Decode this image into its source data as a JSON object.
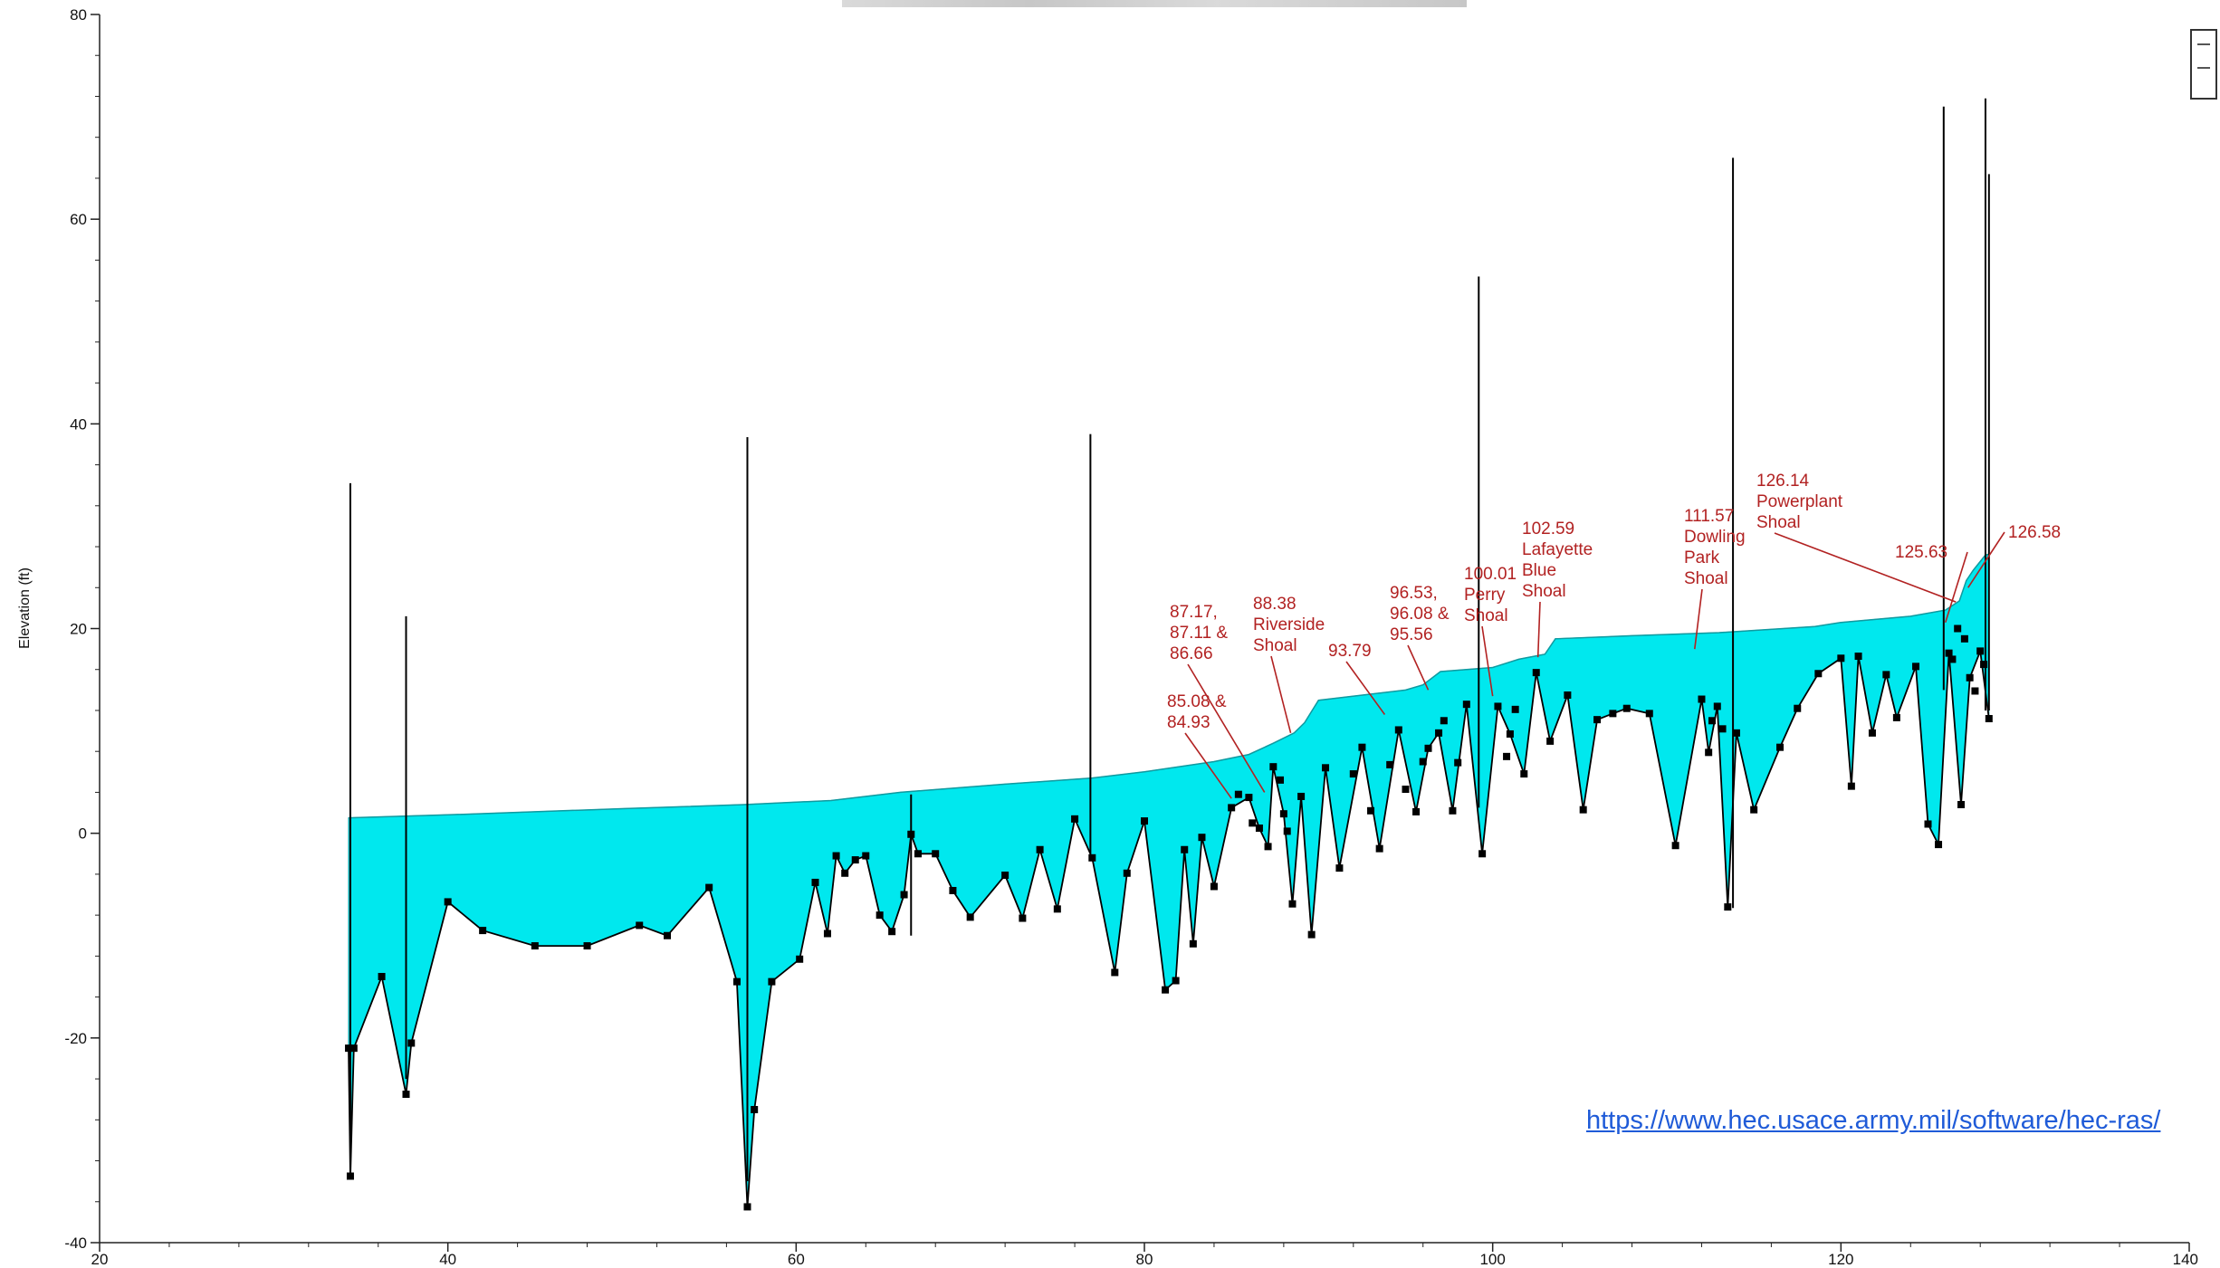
{
  "chart_data": {
    "type": "area",
    "title": "",
    "xlabel": "",
    "ylabel": "Elevation (ft)",
    "xlim": [
      20,
      140
    ],
    "ylim": [
      -40,
      80
    ],
    "x_ticks": [
      "20",
      "40",
      "60",
      "80",
      "100",
      "120",
      "140"
    ],
    "y_ticks": [
      "-40",
      "-20",
      "0",
      "20",
      "40",
      "60",
      "80"
    ],
    "grid": false,
    "legend": "top-right",
    "colors": {
      "water_fill": "#00e8ee",
      "bed_line": "#000000",
      "annotation": "#b22222",
      "link": "#1f5bd8"
    },
    "water_surface": {
      "x": [
        34.2,
        40,
        50,
        57,
        62,
        66,
        72,
        77,
        80,
        84,
        86,
        87.4,
        88.6,
        89.2,
        90,
        95,
        96,
        97,
        100,
        101.5,
        103,
        103.6,
        108,
        113,
        118.5,
        120,
        124,
        126,
        126.8,
        127.2,
        127.6,
        128.3,
        128.7
      ],
      "y": [
        1.5,
        1.8,
        2.4,
        2.8,
        3.2,
        4.0,
        4.8,
        5.4,
        6.0,
        7.0,
        7.7,
        8.8,
        9.8,
        10.8,
        13.0,
        14.0,
        14.5,
        15.8,
        16.2,
        17.0,
        17.5,
        19.0,
        19.3,
        19.6,
        20.2,
        20.6,
        21.2,
        21.8,
        22.7,
        24.7,
        25.7,
        27.2,
        27.3
      ]
    },
    "channel_bed": {
      "x": [
        34.3,
        34.4,
        34.6,
        36.2,
        37.6,
        37.9,
        40,
        42,
        45,
        48,
        51,
        52.6,
        55,
        56.6,
        57.2,
        57.6,
        58.6,
        60.2,
        61.1,
        61.8,
        62.3,
        62.8,
        63.4,
        64,
        64.8,
        65.5,
        66.2,
        66.6,
        67,
        68,
        69,
        70,
        72,
        73,
        74,
        75,
        76,
        77,
        78.3,
        79,
        80,
        81.2,
        81.8,
        82.3,
        82.8,
        83.3,
        84,
        85,
        86,
        86.6,
        87.1,
        87.4,
        88,
        88.5,
        89,
        89.6,
        90.4,
        91.2,
        92.5,
        93.5,
        94.6,
        95.6,
        96.3,
        96.9,
        97.7,
        98.5,
        99.4,
        100.3,
        101,
        101.8,
        102.5,
        103.3,
        104.3,
        105.2,
        106,
        106.9,
        107.7,
        109,
        110.5,
        112,
        112.4,
        112.9,
        113.5,
        114,
        115,
        116.5,
        117.5,
        118.7,
        120,
        120.6,
        121,
        121.8,
        122.6,
        123.2,
        124.3,
        125,
        125.6,
        126.2,
        126.9,
        127.4,
        128,
        128.5
      ],
      "y": [
        -21,
        -33.5,
        -21,
        -14,
        -25.5,
        -20.5,
        -6.7,
        -9.5,
        -11,
        -11,
        -9,
        -10,
        -5.3,
        -14.5,
        -36.5,
        -27,
        -14.5,
        -12.3,
        -4.8,
        -9.8,
        -2.2,
        -3.9,
        -2.6,
        -2.2,
        -8,
        -9.6,
        -6,
        -0.1,
        -2,
        -2,
        -5.6,
        -8.2,
        -4.1,
        -8.3,
        -1.6,
        -7.4,
        1.4,
        -2.4,
        -13.6,
        -3.9,
        1.2,
        -15.3,
        -14.4,
        -1.6,
        -10.8,
        -0.4,
        -5.2,
        2.5,
        3.5,
        0.5,
        -1.3,
        6.5,
        1.9,
        -6.9,
        3.6,
        -9.9,
        6.4,
        -3.4,
        8.4,
        -1.5,
        10.1,
        2.1,
        8.3,
        9.8,
        2.2,
        12.6,
        -2.0,
        12.4,
        9.7,
        5.8,
        15.7,
        9,
        13.5,
        2.3,
        11.1,
        11.7,
        12.2,
        11.7,
        -1.2,
        13.1,
        7.9,
        12.4,
        -7.2,
        9.8,
        2.3,
        8.4,
        12.2,
        15.6,
        17.1,
        4.6,
        17.3,
        9.8,
        15.5,
        11.3,
        16.3,
        0.9,
        -1.1,
        17.6,
        2.8,
        15.2,
        17.8,
        11.2
      ]
    },
    "vertical_lines": [
      {
        "x": 34.4,
        "y_top": 34.2,
        "y_bottom": -33.5
      },
      {
        "x": 37.6,
        "y_top": 21.2,
        "y_bottom": -24
      },
      {
        "x": 57.2,
        "y_top": 38.7,
        "y_bottom": -34
      },
      {
        "x": 66.6,
        "y_top": 3.8,
        "y_bottom": -10
      },
      {
        "x": 76.9,
        "y_top": 39.0,
        "y_bottom": -2
      },
      {
        "x": 99.2,
        "y_top": 54.4,
        "y_bottom": 2.5
      },
      {
        "x": 113.8,
        "y_top": 66.0,
        "y_bottom": -7.3
      },
      {
        "x": 125.9,
        "y_top": 71.0,
        "y_bottom": 14
      },
      {
        "x": 128.3,
        "y_top": 71.8,
        "y_bottom": 12
      },
      {
        "x": 128.5,
        "y_top": 64.4,
        "y_bottom": 12
      }
    ],
    "extra_points": [
      {
        "x": 85.4,
        "y": 3.8
      },
      {
        "x": 86.2,
        "y": 1.0
      },
      {
        "x": 87.8,
        "y": 5.2
      },
      {
        "x": 88.2,
        "y": 0.2
      },
      {
        "x": 92,
        "y": 5.8
      },
      {
        "x": 93,
        "y": 2.2
      },
      {
        "x": 94.1,
        "y": 6.7
      },
      {
        "x": 95,
        "y": 4.3
      },
      {
        "x": 96,
        "y": 7.0
      },
      {
        "x": 97.2,
        "y": 11.0
      },
      {
        "x": 98,
        "y": 6.9
      },
      {
        "x": 100.8,
        "y": 7.5
      },
      {
        "x": 101.3,
        "y": 12.1
      },
      {
        "x": 112.6,
        "y": 11.0
      },
      {
        "x": 113.2,
        "y": 10.2
      },
      {
        "x": 126.4,
        "y": 17.0
      },
      {
        "x": 126.7,
        "y": 20.0
      },
      {
        "x": 127.1,
        "y": 19.0
      },
      {
        "x": 127.7,
        "y": 13.9
      },
      {
        "x": 128.2,
        "y": 16.5
      }
    ],
    "annotations": [
      {
        "lines": [
          "87.17,",
          "87.11 &",
          "86.66"
        ],
        "target_x": 86.9,
        "target_y": 4.0
      },
      {
        "lines": [
          "85.08 &",
          "84.93"
        ],
        "target_x": 85.0,
        "target_y": 3.4
      },
      {
        "lines": [
          "88.38",
          "Riverside",
          "Shoal"
        ],
        "target_x": 88.4,
        "target_y": 9.8
      },
      {
        "lines": [
          "93.79"
        ],
        "target_x": 93.8,
        "target_y": 11.6
      },
      {
        "lines": [
          "96.53,",
          "96.08 &",
          "95.56"
        ],
        "target_x": 96.3,
        "target_y": 14.0
      },
      {
        "lines": [
          "100.01",
          "Perry",
          "Shoal"
        ],
        "target_x": 100.0,
        "target_y": 13.4
      },
      {
        "lines": [
          "102.59",
          "Lafayette",
          "Blue",
          "Shoal"
        ],
        "target_x": 102.6,
        "target_y": 17.2
      },
      {
        "lines": [
          "111.57",
          "Dowling",
          "Park",
          "Shoal"
        ],
        "target_x": 111.6,
        "target_y": 18.0
      },
      {
        "lines": [
          "126.14",
          "Powerplant",
          "Shoal"
        ],
        "target_x": 126.6,
        "target_y": 22.6
      },
      {
        "lines": [
          "125.63"
        ],
        "target_x": 126.0,
        "target_y": 20.6
      },
      {
        "lines": [
          "126.58"
        ],
        "target_x": 127.3,
        "target_y": 24.0
      }
    ]
  },
  "source_link": "https://www.hec.usace.army.mil/software/hec-ras/"
}
